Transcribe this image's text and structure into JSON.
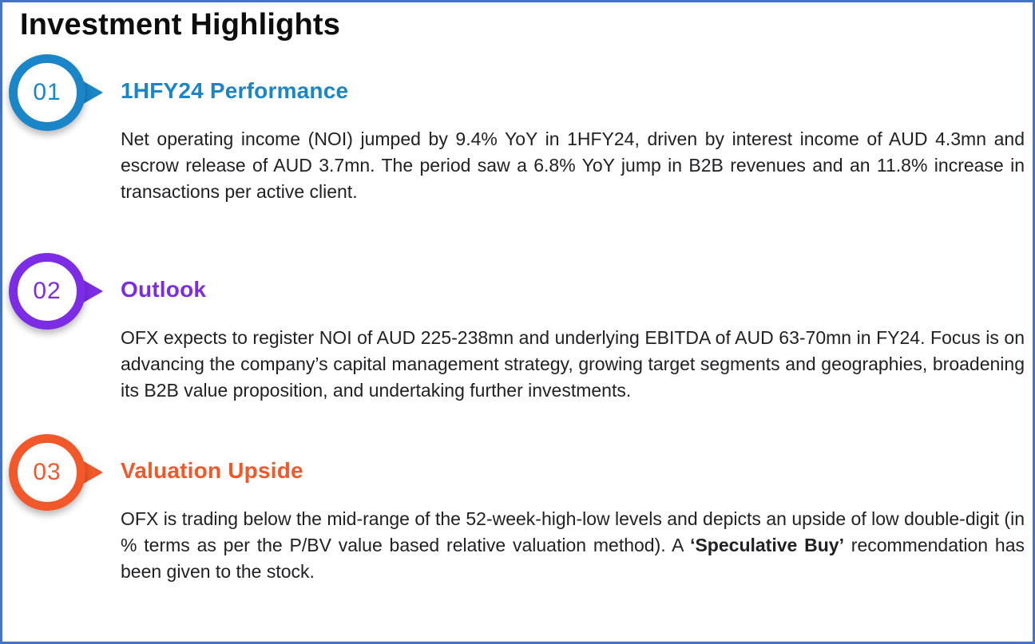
{
  "page": {
    "title": "Investment Highlights"
  },
  "colors": {
    "frame": "#4673c8",
    "title": "#0d0d0e",
    "text": "#202124"
  },
  "sections": [
    {
      "number": "01",
      "color": "#1a85c7",
      "title": "1HFY24 Performance",
      "body": "Net operating income (NOI) jumped by 9.4% YoY in 1HFY24, driven by interest income of AUD 4.3mn and escrow release of AUD 3.7mn. The period saw a 6.8% YoY jump in B2B revenues and an 11.8% increase in transactions per active client."
    },
    {
      "number": "02",
      "color": "#7d2ce5",
      "title": "Outlook",
      "body": "OFX expects to register NOI of AUD 225-238mn and underlying EBITDA of AUD 63-70mn in FY24. Focus is on advancing the company’s capital management strategy, growing target segments and geographies, broadening its B2B value proposition, and undertaking further investments."
    },
    {
      "number": "03",
      "color": "#f2582a",
      "title": "Valuation Upside",
      "body_pre": "OFX is trading below the mid-range of the 52-week-high-low levels and depicts an upside of low double-digit (in % terms as per the P/BV value based relative valuation method). A ",
      "body_bold": "‘Speculative Buy’",
      "body_post": " recommendation has been given to the stock."
    }
  ]
}
